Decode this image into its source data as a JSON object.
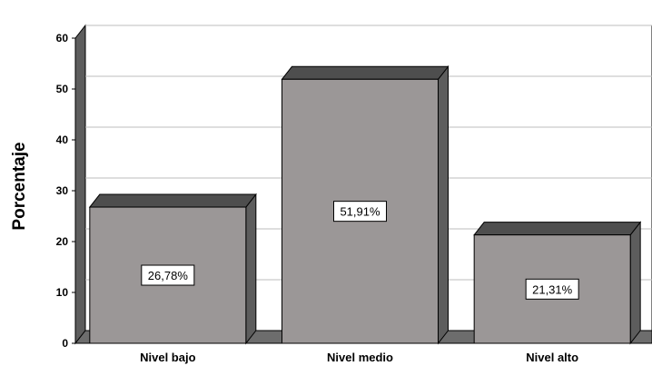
{
  "chart_data": {
    "type": "bar",
    "categories": [
      "Nivel bajo",
      "Nivel medio",
      "Nivel alto"
    ],
    "values": [
      26.78,
      51.91,
      21.31
    ],
    "data_labels": [
      "26,78%",
      "51,91%",
      "21,31%"
    ],
    "title": "",
    "xlabel": "",
    "ylabel": "Porcentaje",
    "ylim": [
      0,
      60
    ],
    "yticks": [
      "0",
      "10",
      "20",
      "30",
      "40",
      "50",
      "60"
    ],
    "grid": true,
    "legend": "none",
    "style": "3d",
    "colors": {
      "bar_front": "#9b9797",
      "bar_top": "#4e4e4e",
      "bar_side": "#5d5d5d",
      "floor": "#6d6d6d",
      "wall": "#ffffff",
      "grid": "#bdbdbd"
    }
  }
}
